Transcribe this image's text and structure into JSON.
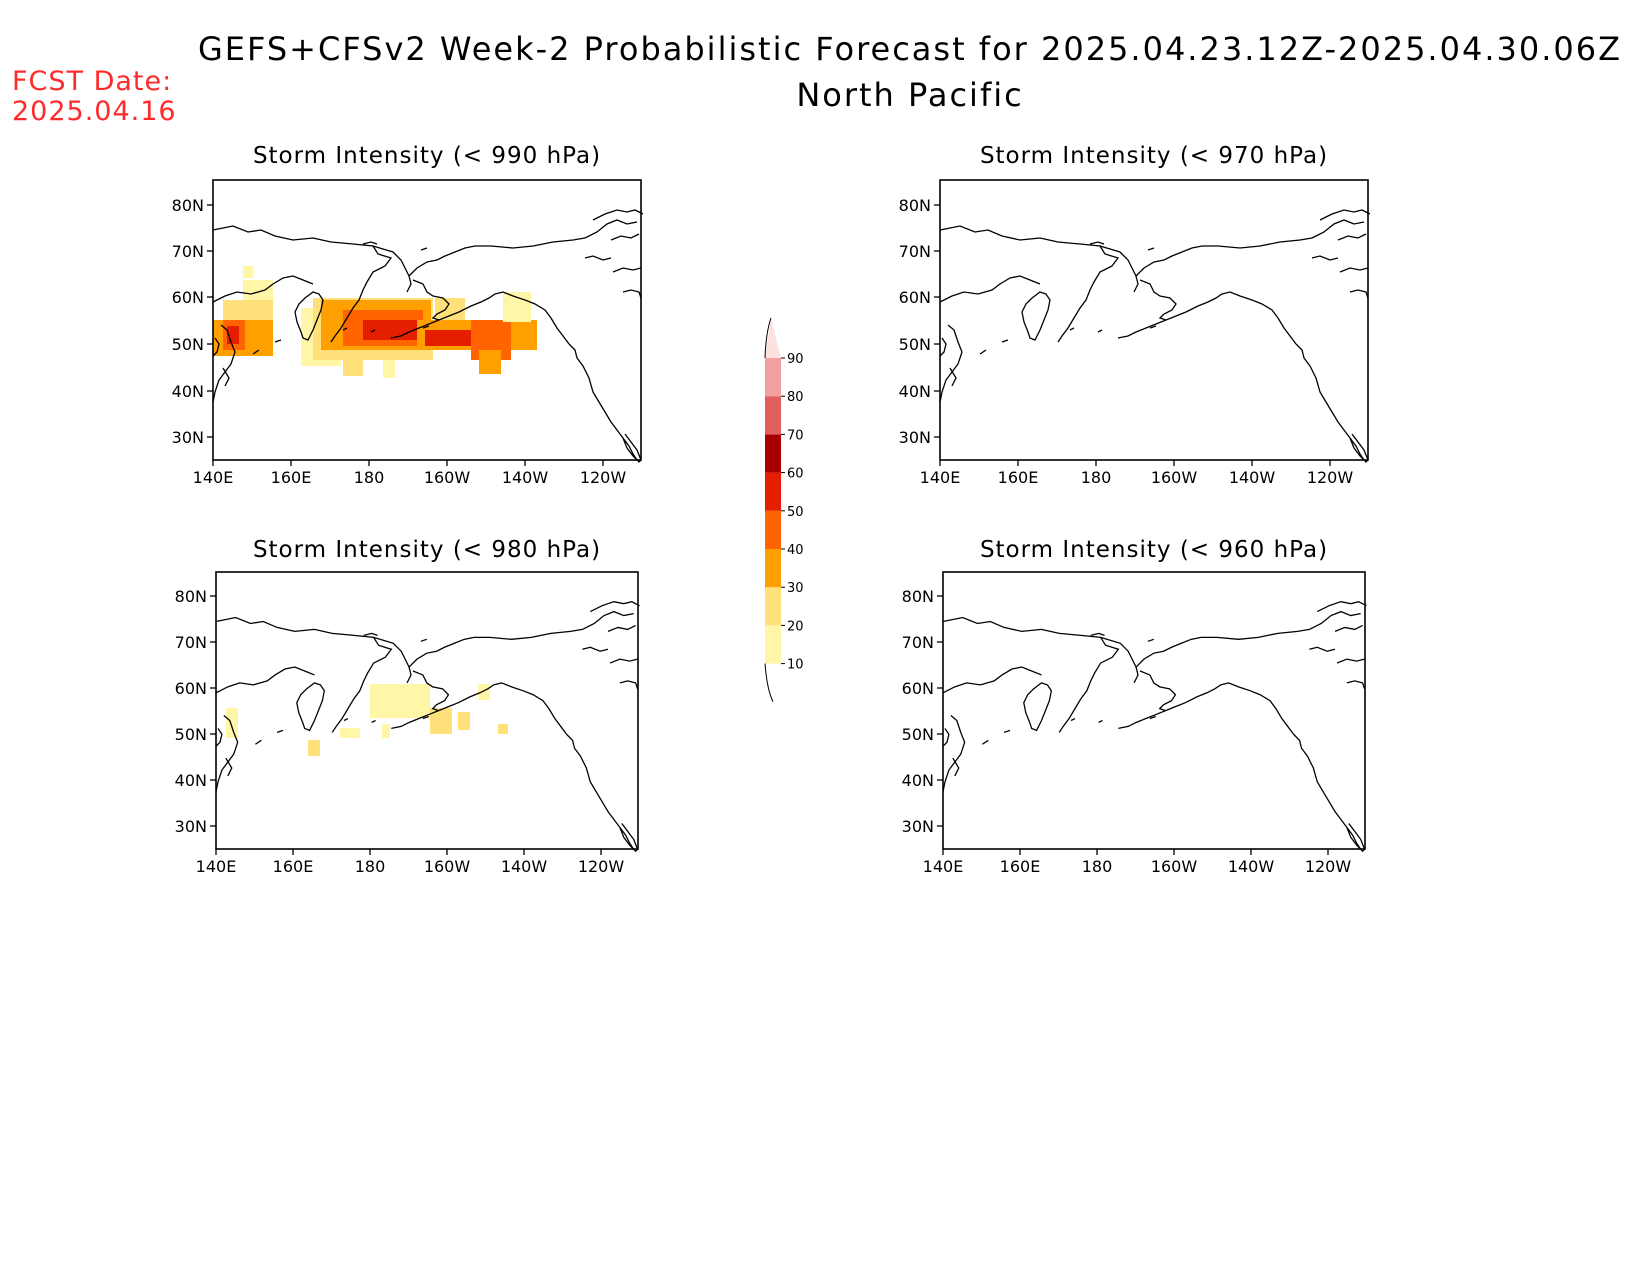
{
  "title": "GEFS+CFSv2 Week-2 Probabilistic Forecast for 2025.04.23.12Z-2025.04.30.06Z",
  "region": "North Pacific",
  "fcst_label": "FCST Date:",
  "fcst_date": "2025.04.16",
  "lon_ticks": [
    "140E",
    "160E",
    "180",
    "160W",
    "140W",
    "120W"
  ],
  "lat_ticks": [
    "80N",
    "70N",
    "60N",
    "50N",
    "40N",
    "30N"
  ],
  "panels": [
    {
      "id": "p990",
      "title": "Storm Intensity (< 990 hPa)"
    },
    {
      "id": "p970",
      "title": "Storm Intensity (< 970 hPa)"
    },
    {
      "id": "p980",
      "title": "Storm Intensity (< 980 hPa)"
    },
    {
      "id": "p960",
      "title": "Storm Intensity (< 960 hPa)"
    }
  ],
  "colorbar": {
    "levels": [
      "10",
      "20",
      "30",
      "40",
      "50",
      "60",
      "70",
      "80",
      "90"
    ],
    "colors": [
      "#fff6a8",
      "#ffe07a",
      "#ffa000",
      "#ff6400",
      "#e61e00",
      "#a80000",
      "#e06060",
      "#f4a0a0",
      "#fde0e0"
    ]
  }
}
